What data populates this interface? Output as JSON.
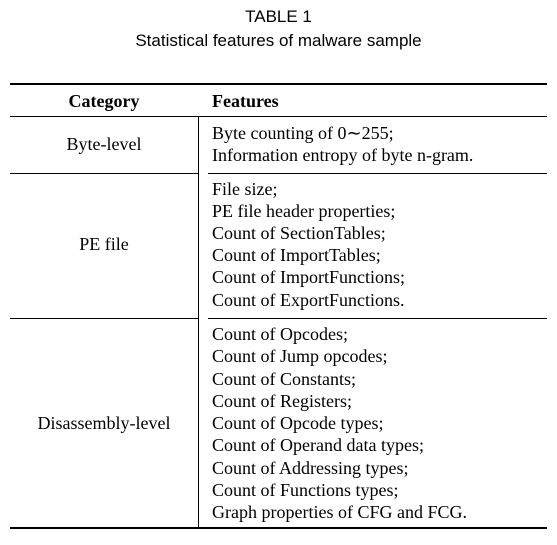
{
  "caption": {
    "label": "TABLE 1",
    "title": "Statistical features of malware sample"
  },
  "table": {
    "headers": {
      "category": "Category",
      "features": "Features"
    },
    "rows": [
      {
        "category": "Byte-level",
        "features": [
          "Byte counting of 0∼255;",
          "Information entropy of byte n-gram."
        ]
      },
      {
        "category": "PE file",
        "features": [
          "File size;",
          "PE file header properties;",
          "Count of SectionTables;",
          "Count of ImportTables;",
          "Count of ImportFunctions;",
          "Count of ExportFunctions."
        ]
      },
      {
        "category": "Disassembly-level",
        "features": [
          "Count of Opcodes;",
          "Count of Jump opcodes;",
          "Count of Constants;",
          "Count of Registers;",
          "Count of Opcode types;",
          "Count of Operand data types;",
          "Count of Addressing types;",
          "Count of Functions types;",
          "Graph properties of CFG and FCG."
        ]
      }
    ]
  }
}
